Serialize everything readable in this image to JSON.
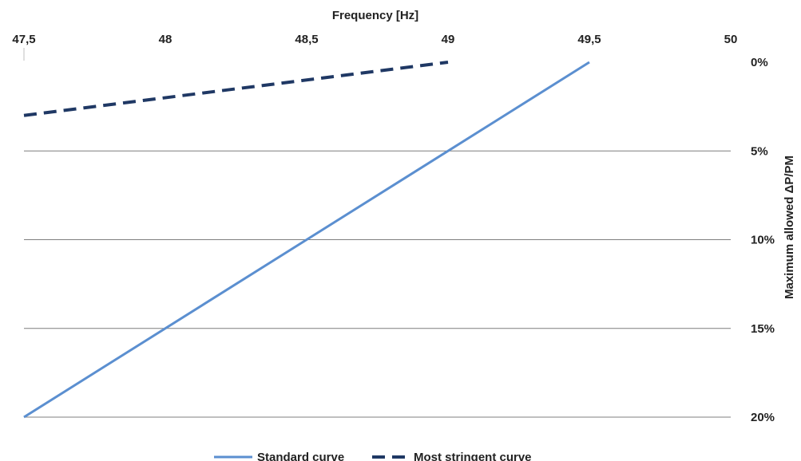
{
  "chart_data": {
    "type": "line",
    "xlabel": "Frequency [Hz]",
    "ylabel": "Maximum allowed ΔP/PM",
    "x_axis_position": "top",
    "y_axis_position": "right",
    "y_inverted": true,
    "xlim": [
      47.5,
      50
    ],
    "ylim": [
      0,
      20
    ],
    "x_ticks": [
      "47,5",
      "48",
      "48,5",
      "49",
      "49,5",
      "50"
    ],
    "y_ticks": [
      "0%",
      "5%",
      "10%",
      "15%",
      "20%"
    ],
    "grid": "horizontal",
    "legend_position": "bottom",
    "series": [
      {
        "name": "Standard curve",
        "style": "solid",
        "color": "#5b8fd0",
        "x": [
          47.5,
          49.5
        ],
        "y": [
          20,
          0
        ]
      },
      {
        "name": "Most stringent curve",
        "style": "dashed",
        "color": "#1f3864",
        "x": [
          47.5,
          49.0
        ],
        "y": [
          3,
          0
        ]
      }
    ]
  }
}
